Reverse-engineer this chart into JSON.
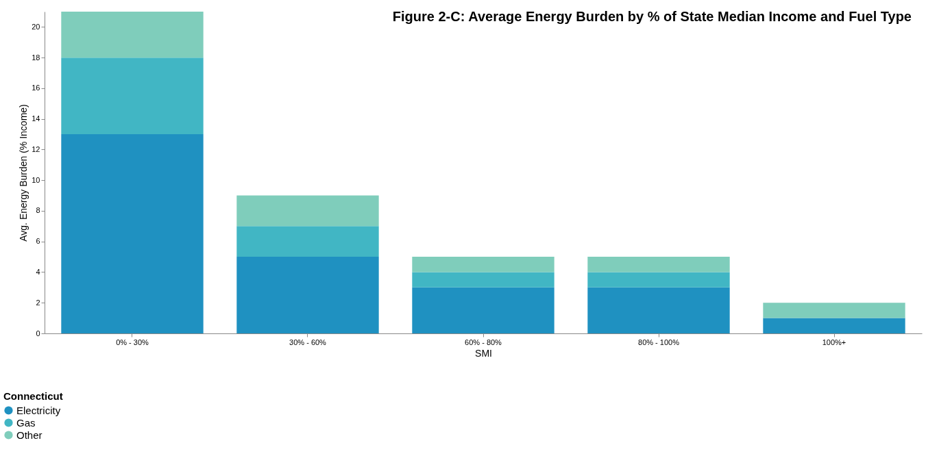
{
  "chart_data": {
    "type": "bar",
    "stacked": true,
    "title": "Figure 2-C: Average Energy Burden by % of State Median Income and Fuel Type",
    "xlabel": "SMI",
    "ylabel": "Avg. Energy Burden (% Income)",
    "legend_title": "Connecticut",
    "categories": [
      "0% - 30%",
      "30% - 60%",
      "60% - 80%",
      "80% - 100%",
      "100%+"
    ],
    "series": [
      {
        "name": "Electricity",
        "color": "#1f91c1",
        "values": [
          13,
          5,
          3,
          3,
          1
        ]
      },
      {
        "name": "Gas",
        "color": "#41b6c4",
        "values": [
          5,
          2,
          1,
          1,
          0
        ]
      },
      {
        "name": "Other",
        "color": "#7fcdbb",
        "values": [
          3,
          2,
          1,
          1,
          1
        ]
      }
    ],
    "ylim": [
      0,
      21
    ],
    "yticks": [
      0,
      2,
      4,
      6,
      8,
      10,
      12,
      14,
      16,
      18,
      20
    ],
    "grid": false,
    "legend": "bottom left"
  }
}
